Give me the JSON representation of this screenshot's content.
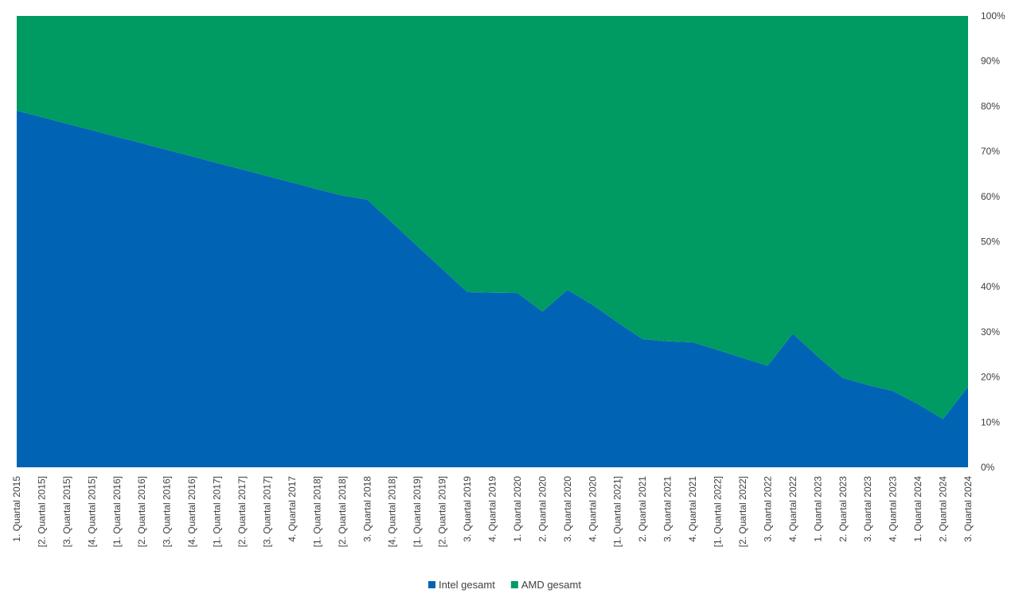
{
  "chart_data": {
    "type": "area",
    "stacked": "percent",
    "categories": [
      "1. Quartal 2015",
      "[2. Quartal 2015]",
      "[3. Quartal 2015]",
      "[4. Quartal 2015]",
      "[1. Quartal 2016]",
      "[2. Quartal 2016]",
      "[3. Quartal 2016]",
      "[4. Quartal 2016]",
      "[1. Quartal 2017]",
      "[2. Quartal 2017]",
      "[3. Quartal 2017]",
      "4. Quartal 2017",
      "[1. Quartal 2018]",
      "[2. Quartal 2018]",
      "3. Quartal 2018",
      "[4. Quartal 2018]",
      "[1. Quartal 2019]",
      "[2. Quartal 2019]",
      "3. Quartal 2019",
      "4. Quartal 2019",
      "1. Quartal 2020",
      "2. Quartal 2020",
      "3. Quartal 2020",
      "4. Quartal 2020",
      "[1. Quartal 2021]",
      "2. Quartal 2021",
      "3. Quartal 2021",
      "4. Quartal 2021",
      "[1. Quartal 2022]",
      "[2. Quartal 2022]",
      "3. Quartal 2022",
      "4. Quartal 2022",
      "1. Quartal 2023",
      "2. Quartal 2023",
      "3. Quartal 2023",
      "4. Quartal 2023",
      "1. Quartal 2024",
      "2. Quartal 2024",
      "3. Quartal 2024"
    ],
    "series": [
      {
        "name": "Intel gesamt",
        "color": "#0063b4",
        "values": [
          79,
          77.6,
          76.1,
          74.7,
          73.2,
          71.8,
          70.3,
          68.9,
          67.4,
          66.0,
          64.5,
          63.1,
          61.6,
          60.2,
          59.3,
          54.2,
          49.0,
          43.9,
          38.8,
          38.7,
          38.6,
          34.5,
          39.3,
          36.0,
          32.1,
          28.4,
          27.9,
          27.7,
          26.0,
          24.2,
          22.5,
          29.6,
          24.5,
          19.8,
          18.2,
          16.9,
          14.0,
          10.7,
          17.8
        ]
      },
      {
        "name": "AMD gesamt",
        "color": "#009a63",
        "values": [
          21,
          22.4,
          23.9,
          25.3,
          26.8,
          28.2,
          29.7,
          31.1,
          32.6,
          34.0,
          35.5,
          36.9,
          38.4,
          39.8,
          40.7,
          45.8,
          51.0,
          56.1,
          61.2,
          61.3,
          61.4,
          65.5,
          60.7,
          64.0,
          67.9,
          71.6,
          72.1,
          72.3,
          74.0,
          75.8,
          77.5,
          70.4,
          75.5,
          80.2,
          81.8,
          83.1,
          86.0,
          89.3,
          82.2
        ]
      }
    ],
    "y_ticks": [
      "0%",
      "10%",
      "20%",
      "30%",
      "40%",
      "50%",
      "60%",
      "70%",
      "80%",
      "90%",
      "100%"
    ],
    "ylim": [
      0,
      100
    ],
    "y_axis_side": "right",
    "legend": "bottom-center",
    "grid": false
  }
}
